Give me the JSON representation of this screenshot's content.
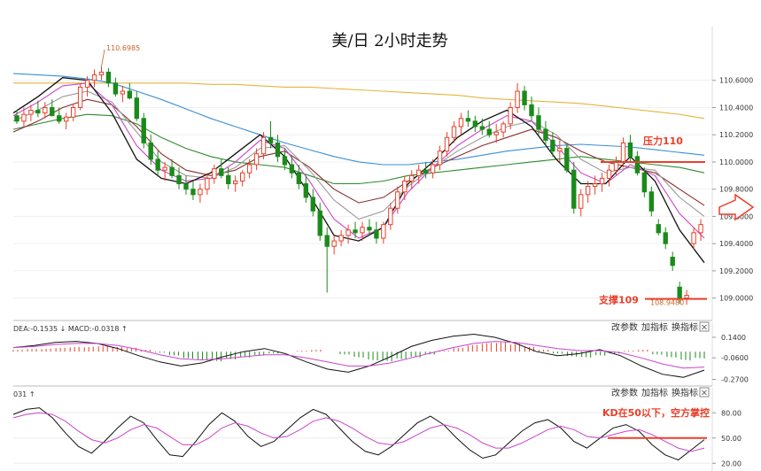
{
  "title": "美/日 2小时走势",
  "buttons": {
    "change_params": "改参数",
    "add_indicator": "加指标",
    "switch_indicator": "换指标",
    "close": "×"
  },
  "macd_header": "DEA:-0.1535 ↓ MACD:-0.0318 ↑",
  "kd_header": "031 ↑",
  "annotations": {
    "resistance": "压力110",
    "support": "支撑109",
    "kd_note": "KD在50以下，空方掌控",
    "high_label": "110.6985",
    "low_label": "108.9480"
  },
  "colors": {
    "up": "#e8402a",
    "down": "#1a8a1a",
    "ma_yellow": "#e6b43c",
    "ma_blue": "#3a8fd8",
    "ma_green": "#2e8b2e",
    "ma_maroon": "#8b2e2e",
    "ma_grey": "#9a9a9a",
    "ma_pink": "#cc44cc",
    "ma_black": "#111111",
    "annotation": "#e8402a"
  },
  "chart_data": {
    "type": "candlestick",
    "price_axis": {
      "ylim": [
        108.9,
        110.8
      ],
      "ticks": [
        "110.6000",
        "110.4000",
        "110.2000",
        "110.0000",
        "109.8000",
        "109.6000",
        "109.4000",
        "109.2000",
        "109.0000"
      ]
    },
    "macd_axis": {
      "ylim": [
        -0.3,
        0.2
      ],
      "ticks": [
        "0.1400",
        "-0.0600",
        "-0.2700"
      ]
    },
    "kd_axis": {
      "ylim": [
        15,
        95
      ],
      "ticks": [
        "80.00",
        "50.00",
        "20.00"
      ]
    },
    "resistance": 110.0,
    "support": 109.0,
    "candles": [
      [
        110.34,
        110.38,
        110.28,
        110.3
      ],
      [
        110.3,
        110.4,
        110.26,
        110.35
      ],
      [
        110.35,
        110.42,
        110.3,
        110.38
      ],
      [
        110.38,
        110.45,
        110.33,
        110.36
      ],
      [
        110.36,
        110.44,
        110.32,
        110.4
      ],
      [
        110.4,
        110.46,
        110.35,
        110.34
      ],
      [
        110.34,
        110.4,
        110.28,
        110.3
      ],
      [
        110.3,
        110.36,
        110.24,
        110.33
      ],
      [
        110.33,
        110.42,
        110.3,
        110.4
      ],
      [
        110.4,
        110.58,
        110.38,
        110.55
      ],
      [
        110.55,
        110.63,
        110.48,
        110.6
      ],
      [
        110.6,
        110.68,
        110.55,
        110.64
      ],
      [
        110.64,
        110.7,
        110.6,
        110.66
      ],
      [
        110.66,
        110.69,
        110.55,
        110.58
      ],
      [
        110.58,
        110.62,
        110.48,
        110.5
      ],
      [
        110.5,
        110.56,
        110.44,
        110.52
      ],
      [
        110.52,
        110.58,
        110.46,
        110.47
      ],
      [
        110.47,
        110.52,
        110.3,
        110.32
      ],
      [
        110.32,
        110.36,
        110.1,
        110.14
      ],
      [
        110.14,
        110.2,
        109.98,
        110.02
      ],
      [
        110.02,
        110.08,
        109.9,
        109.94
      ],
      [
        109.94,
        110.0,
        109.86,
        109.96
      ],
      [
        109.96,
        110.02,
        109.88,
        109.9
      ],
      [
        109.9,
        109.96,
        109.8,
        109.84
      ],
      [
        109.84,
        109.9,
        109.76,
        109.8
      ],
      [
        109.8,
        109.86,
        109.72,
        109.76
      ],
      [
        109.76,
        109.84,
        109.7,
        109.8
      ],
      [
        109.8,
        109.92,
        109.76,
        109.88
      ],
      [
        109.88,
        109.98,
        109.84,
        109.95
      ],
      [
        109.95,
        110.02,
        109.88,
        109.9
      ],
      [
        109.9,
        109.96,
        109.8,
        109.84
      ],
      [
        109.84,
        109.9,
        109.78,
        109.86
      ],
      [
        109.86,
        109.94,
        109.82,
        109.92
      ],
      [
        109.92,
        110.02,
        109.88,
        109.98
      ],
      [
        109.98,
        110.1,
        109.94,
        110.06
      ],
      [
        110.06,
        110.22,
        110.02,
        110.18
      ],
      [
        110.18,
        110.3,
        110.1,
        110.14
      ],
      [
        110.14,
        110.2,
        110.0,
        110.04
      ],
      [
        110.04,
        110.1,
        109.94,
        109.98
      ],
      [
        109.98,
        110.04,
        109.88,
        109.92
      ],
      [
        109.92,
        109.98,
        109.8,
        109.84
      ],
      [
        109.84,
        109.9,
        109.7,
        109.74
      ],
      [
        109.74,
        109.8,
        109.6,
        109.64
      ],
      [
        109.64,
        109.7,
        109.42,
        109.46
      ],
      [
        109.46,
        109.52,
        109.04,
        109.38
      ],
      [
        109.38,
        109.46,
        109.32,
        109.42
      ],
      [
        109.42,
        109.5,
        109.38,
        109.46
      ],
      [
        109.46,
        109.54,
        109.4,
        109.5
      ],
      [
        109.5,
        109.56,
        109.44,
        109.48
      ],
      [
        109.48,
        109.56,
        109.42,
        109.52
      ],
      [
        109.52,
        109.58,
        109.46,
        109.5
      ],
      [
        109.5,
        109.56,
        109.4,
        109.44
      ],
      [
        109.44,
        109.56,
        109.4,
        109.54
      ],
      [
        109.54,
        109.7,
        109.5,
        109.66
      ],
      [
        109.66,
        109.82,
        109.62,
        109.78
      ],
      [
        109.78,
        109.9,
        109.72,
        109.86
      ],
      [
        109.86,
        109.94,
        109.8,
        109.9
      ],
      [
        109.9,
        109.98,
        109.84,
        109.94
      ],
      [
        109.94,
        110.0,
        109.88,
        109.92
      ],
      [
        109.92,
        110.02,
        109.88,
        109.98
      ],
      [
        109.98,
        110.12,
        109.94,
        110.08
      ],
      [
        110.08,
        110.22,
        110.04,
        110.18
      ],
      [
        110.18,
        110.3,
        110.14,
        110.26
      ],
      [
        110.26,
        110.36,
        110.2,
        110.32
      ],
      [
        110.32,
        110.38,
        110.26,
        110.3
      ],
      [
        110.3,
        110.34,
        110.22,
        110.26
      ],
      [
        110.26,
        110.32,
        110.2,
        110.24
      ],
      [
        110.24,
        110.3,
        110.18,
        110.2
      ],
      [
        110.2,
        110.28,
        110.14,
        110.22
      ],
      [
        110.22,
        110.3,
        110.18,
        110.28
      ],
      [
        110.28,
        110.44,
        110.24,
        110.4
      ],
      [
        110.4,
        110.58,
        110.36,
        110.52
      ],
      [
        110.52,
        110.56,
        110.38,
        110.42
      ],
      [
        110.42,
        110.48,
        110.3,
        110.34
      ],
      [
        110.34,
        110.4,
        110.2,
        110.24
      ],
      [
        110.24,
        110.3,
        110.12,
        110.16
      ],
      [
        110.16,
        110.22,
        110.04,
        110.08
      ],
      [
        110.08,
        110.16,
        110.0,
        110.1
      ],
      [
        110.1,
        110.14,
        109.92,
        109.94
      ],
      [
        109.94,
        110.0,
        109.62,
        109.66
      ],
      [
        109.66,
        109.8,
        109.6,
        109.76
      ],
      [
        109.76,
        109.86,
        109.7,
        109.82
      ],
      [
        109.82,
        109.9,
        109.76,
        109.84
      ],
      [
        109.84,
        109.92,
        109.78,
        109.88
      ],
      [
        109.88,
        109.98,
        109.82,
        109.94
      ],
      [
        109.94,
        110.04,
        109.9,
        110.0
      ],
      [
        110.0,
        110.18,
        109.96,
        110.14
      ],
      [
        110.14,
        110.2,
        110.0,
        110.04
      ],
      [
        110.04,
        110.08,
        109.9,
        109.92
      ],
      [
        109.92,
        109.96,
        109.74,
        109.78
      ],
      [
        109.78,
        109.82,
        109.6,
        109.64
      ],
      [
        109.54,
        109.58,
        109.46,
        109.48
      ],
      [
        109.48,
        109.52,
        109.36,
        109.4
      ],
      [
        109.3,
        109.34,
        109.2,
        109.24
      ],
      [
        109.08,
        109.12,
        108.96,
        109.0
      ],
      [
        109.0,
        109.06,
        108.95,
        109.02
      ],
      [
        109.4,
        109.52,
        109.36,
        109.48
      ],
      [
        109.48,
        109.58,
        109.42,
        109.54
      ]
    ],
    "series": [
      {
        "color": "#e6b43c",
        "values": [
          110.58,
          110.58,
          110.58,
          110.58,
          110.58,
          110.58,
          110.58,
          110.58,
          110.57,
          110.57,
          110.56,
          110.55,
          110.55,
          110.54,
          110.53,
          110.52,
          110.51,
          110.5,
          110.49,
          110.47,
          110.46,
          110.45,
          110.44,
          110.43,
          110.41,
          110.39,
          110.37,
          110.35,
          110.32
        ]
      },
      {
        "color": "#3a8fd8",
        "values": [
          110.65,
          110.64,
          110.63,
          110.61,
          110.58,
          110.52,
          110.46,
          110.39,
          110.32,
          110.26,
          110.2,
          110.14,
          110.09,
          110.04,
          110.0,
          109.98,
          109.98,
          110.0,
          110.02,
          110.05,
          110.08,
          110.1,
          110.12,
          110.13,
          110.12,
          110.11,
          110.09,
          110.07,
          110.05
        ]
      },
      {
        "color": "#2e8b2e",
        "values": [
          110.24,
          110.28,
          110.32,
          110.35,
          110.34,
          110.28,
          110.18,
          110.1,
          110.04,
          110.0,
          109.98,
          109.96,
          109.9,
          109.84,
          109.84,
          109.86,
          109.9,
          109.92,
          109.94,
          109.96,
          109.98,
          110.0,
          110.02,
          110.04,
          110.02,
          110.0,
          109.98,
          109.96,
          109.92
        ]
      },
      {
        "color": "#8b2e2e",
        "values": [
          110.22,
          110.3,
          110.4,
          110.46,
          110.42,
          110.26,
          110.06,
          109.94,
          109.9,
          109.94,
          110.04,
          110.08,
          109.96,
          109.8,
          109.7,
          109.74,
          109.86,
          109.96,
          110.04,
          110.12,
          110.18,
          110.24,
          110.18,
          110.08,
          110.0,
          109.96,
          109.92,
          109.8,
          109.68
        ]
      },
      {
        "color": "#9a9a9a",
        "values": [
          110.3,
          110.38,
          110.48,
          110.52,
          110.44,
          110.22,
          110.0,
          109.9,
          109.88,
          109.96,
          110.1,
          110.12,
          109.94,
          109.72,
          109.58,
          109.64,
          109.82,
          109.96,
          110.08,
          110.18,
          110.26,
          110.3,
          110.2,
          110.02,
          109.92,
          109.96,
          109.94,
          109.74,
          109.6
        ]
      },
      {
        "color": "#cc44cc",
        "values": [
          110.34,
          110.44,
          110.56,
          110.58,
          110.42,
          110.12,
          109.94,
          109.86,
          109.88,
          110.0,
          110.16,
          110.1,
          109.86,
          109.58,
          109.44,
          109.52,
          109.78,
          109.96,
          110.12,
          110.24,
          110.34,
          110.3,
          110.12,
          109.92,
          109.84,
          109.98,
          109.9,
          109.62,
          109.44
        ]
      },
      {
        "color": "#111111",
        "values": [
          110.36,
          110.48,
          110.62,
          110.6,
          110.36,
          110.02,
          109.88,
          109.84,
          109.92,
          110.06,
          110.2,
          110.04,
          109.76,
          109.46,
          109.42,
          109.52,
          109.84,
          110.0,
          110.18,
          110.3,
          110.38,
          110.26,
          110.02,
          109.84,
          109.84,
          110.04,
          109.86,
          109.5,
          109.26
        ]
      }
    ],
    "macd": {
      "hist": [
        0.02,
        0.03,
        0.03,
        0.04,
        0.05,
        0.05,
        0.06,
        0.05,
        0.04,
        0.02,
        -0.01,
        -0.04,
        -0.07,
        -0.09,
        -0.1,
        -0.08,
        -0.06,
        -0.04,
        -0.02,
        0.0,
        0.01,
        0.02,
        0.0,
        -0.03,
        -0.06,
        -0.09,
        -0.1,
        -0.08,
        -0.06,
        -0.03,
        0.01,
        0.04,
        0.07,
        0.09,
        0.1,
        0.08,
        0.05,
        0.02,
        -0.02,
        -0.05,
        -0.06,
        -0.04,
        -0.02,
        0.01,
        0.02,
        -0.03,
        -0.06,
        -0.09,
        -0.07
      ],
      "dif": [
        0.04,
        0.06,
        0.09,
        0.1,
        0.08,
        0.03,
        -0.04,
        -0.1,
        -0.14,
        -0.11,
        -0.05,
        0.0,
        0.03,
        -0.02,
        -0.1,
        -0.17,
        -0.2,
        -0.14,
        -0.05,
        0.05,
        0.11,
        0.15,
        0.17,
        0.14,
        0.08,
        0.0,
        -0.04,
        -0.02,
        0.02,
        -0.04,
        -0.14,
        -0.22,
        -0.25,
        -0.18
      ],
      "dea": [
        0.04,
        0.05,
        0.07,
        0.08,
        0.08,
        0.06,
        0.02,
        -0.03,
        -0.07,
        -0.08,
        -0.07,
        -0.05,
        -0.03,
        -0.03,
        -0.06,
        -0.1,
        -0.14,
        -0.14,
        -0.11,
        -0.06,
        -0.01,
        0.04,
        0.08,
        0.1,
        0.09,
        0.06,
        0.03,
        0.01,
        0.01,
        -0.01,
        -0.06,
        -0.12,
        -0.16,
        -0.15
      ]
    },
    "kd": {
      "k": [
        78,
        84,
        86,
        74,
        56,
        40,
        32,
        46,
        62,
        76,
        68,
        48,
        30,
        28,
        46,
        66,
        80,
        70,
        52,
        40,
        46,
        60,
        74,
        84,
        78,
        62,
        46,
        34,
        30,
        40,
        54,
        68,
        76,
        66,
        50,
        36,
        26,
        30,
        44,
        58,
        68,
        72,
        62,
        46,
        38,
        50,
        62,
        66,
        58,
        42,
        30,
        24,
        36,
        48
      ],
      "d": [
        74,
        78,
        80,
        78,
        70,
        58,
        48,
        44,
        50,
        60,
        66,
        62,
        52,
        42,
        42,
        50,
        62,
        68,
        64,
        56,
        50,
        52,
        60,
        70,
        74,
        70,
        62,
        52,
        44,
        42,
        46,
        54,
        62,
        66,
        62,
        54,
        44,
        38,
        38,
        44,
        52,
        60,
        64,
        60,
        52,
        50,
        54,
        58,
        60,
        54,
        46,
        38,
        34,
        38
      ]
    }
  }
}
